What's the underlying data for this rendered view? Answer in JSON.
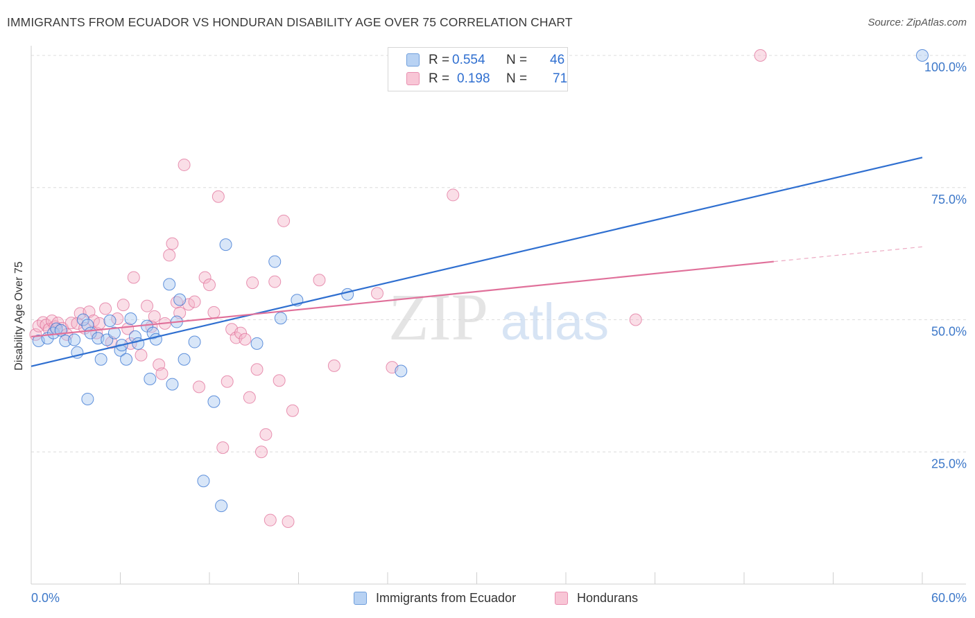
{
  "title": "IMMIGRANTS FROM ECUADOR VS HONDURAN DISABILITY AGE OVER 75 CORRELATION CHART",
  "source": "Source: ZipAtlas.com",
  "watermark": {
    "zip": "ZIP",
    "atlas": "atlas"
  },
  "legend": [
    {
      "r_label": "R =",
      "r_value": "0.554",
      "n_label": "N =",
      "n_value": "46"
    },
    {
      "r_label": "R =",
      "r_value": "0.198",
      "n_label": "N =",
      "n_value": "71"
    }
  ],
  "colors": {
    "blue": "#2f6fd0",
    "blue_fill": "#a9c8f0",
    "pink": "#e0709a",
    "pink_fill": "#f5b6ca",
    "axis_text": "#3d78c9"
  },
  "chart_data": {
    "type": "scatter",
    "xlabel": "",
    "ylabel": "Disability Age Over 75",
    "xlim": [
      0,
      60
    ],
    "ylim": [
      0,
      100
    ],
    "x_tick_labels": [
      "0.0%",
      "60.0%"
    ],
    "y_ticks": [
      25,
      50,
      75,
      100
    ],
    "y_tick_labels": [
      "25.0%",
      "50.0%",
      "75.0%",
      "100.0%"
    ],
    "grid": "horizontal dashed",
    "legend_position": "top-center",
    "series": [
      {
        "name": "Immigrants from Ecuador",
        "color": "#2f6fd0",
        "trend": {
          "x0": 0,
          "y0": 41.2,
          "x1": 60,
          "y1": 80.7
        },
        "points": [
          [
            0.5,
            46
          ],
          [
            1.1,
            46.5
          ],
          [
            1.5,
            47.5
          ],
          [
            1.7,
            48.3
          ],
          [
            2,
            48
          ],
          [
            2.3,
            46
          ],
          [
            2.9,
            46.2
          ],
          [
            3.1,
            43.8
          ],
          [
            3.5,
            50
          ],
          [
            3.8,
            49
          ],
          [
            3.8,
            35
          ],
          [
            4,
            47.5
          ],
          [
            4.5,
            46.5
          ],
          [
            4.7,
            42.5
          ],
          [
            5.1,
            46.2
          ],
          [
            5.3,
            49.8
          ],
          [
            5.6,
            47.5
          ],
          [
            6,
            44.2
          ],
          [
            6.1,
            45.2
          ],
          [
            6.4,
            42.5
          ],
          [
            6.7,
            50.2
          ],
          [
            7,
            46.8
          ],
          [
            7.2,
            45.5
          ],
          [
            7.8,
            48.8
          ],
          [
            8.0,
            38.8
          ],
          [
            8.2,
            47.5
          ],
          [
            8.4,
            46.3
          ],
          [
            9.3,
            56.7
          ],
          [
            9.5,
            37.8
          ],
          [
            9.8,
            49.6
          ],
          [
            10,
            53.8
          ],
          [
            10.3,
            42.5
          ],
          [
            11,
            45.8
          ],
          [
            11.6,
            19.5
          ],
          [
            12.3,
            34.5
          ],
          [
            12.8,
            14.8
          ],
          [
            13.1,
            64.2
          ],
          [
            15.2,
            45.5
          ],
          [
            16.4,
            61
          ],
          [
            16.8,
            50.3
          ],
          [
            17.9,
            53.7
          ],
          [
            21.3,
            54.8
          ],
          [
            24.9,
            40.3
          ],
          [
            60,
            100
          ]
        ]
      },
      {
        "name": "Hondurans",
        "color": "#e0709a",
        "trend": {
          "x0": 0,
          "y0": 46.8,
          "x1": 50,
          "y1": 61,
          "dash_to_x": 60,
          "dash_to_y": 63.8
        },
        "points": [
          [
            0.3,
            47.2
          ],
          [
            0.5,
            48.8
          ],
          [
            0.8,
            49.5
          ],
          [
            1,
            49
          ],
          [
            1.2,
            48.2
          ],
          [
            1.4,
            49.8
          ],
          [
            1.6,
            48.7
          ],
          [
            1.8,
            49.4
          ],
          [
            2.1,
            48.4
          ],
          [
            2.4,
            47.2
          ],
          [
            2.7,
            49.4
          ],
          [
            3.1,
            49.3
          ],
          [
            3.3,
            51.2
          ],
          [
            3.6,
            48.4
          ],
          [
            3.9,
            51.5
          ],
          [
            4.2,
            49.8
          ],
          [
            4.4,
            47.5
          ],
          [
            4.6,
            49.3
          ],
          [
            5.0,
            52.1
          ],
          [
            5.4,
            45.7
          ],
          [
            5.8,
            50.2
          ],
          [
            6.2,
            52.8
          ],
          [
            6.5,
            48.3
          ],
          [
            6.7,
            45.5
          ],
          [
            6.9,
            58
          ],
          [
            7.4,
            43.3
          ],
          [
            7.8,
            52.6
          ],
          [
            8.1,
            48.7
          ],
          [
            8.3,
            50.6
          ],
          [
            8.6,
            41.5
          ],
          [
            8.8,
            39.8
          ],
          [
            9.0,
            49.3
          ],
          [
            9.3,
            62.2
          ],
          [
            9.5,
            64.4
          ],
          [
            9.8,
            53.3
          ],
          [
            10,
            51.3
          ],
          [
            10.3,
            79.3
          ],
          [
            10.6,
            52.9
          ],
          [
            11,
            53.4
          ],
          [
            11.3,
            37.3
          ],
          [
            11.7,
            58
          ],
          [
            12,
            56.6
          ],
          [
            12.3,
            51.4
          ],
          [
            12.6,
            73.3
          ],
          [
            12.9,
            25.8
          ],
          [
            13.2,
            38.3
          ],
          [
            13.5,
            48.2
          ],
          [
            13.8,
            46.6
          ],
          [
            14.1,
            47.5
          ],
          [
            14.4,
            46.3
          ],
          [
            14.7,
            35.3
          ],
          [
            14.9,
            57
          ],
          [
            15.2,
            40.6
          ],
          [
            15.5,
            25
          ],
          [
            15.8,
            28.3
          ],
          [
            16.1,
            12.1
          ],
          [
            16.4,
            57.2
          ],
          [
            16.7,
            38.5
          ],
          [
            17,
            68.7
          ],
          [
            17.3,
            11.8
          ],
          [
            17.6,
            32.8
          ],
          [
            19.4,
            57.5
          ],
          [
            20.4,
            41.3
          ],
          [
            23.3,
            55
          ],
          [
            24.3,
            41
          ],
          [
            28.4,
            73.6
          ],
          [
            40.7,
            50
          ],
          [
            49.1,
            100
          ]
        ]
      }
    ]
  },
  "bottom_legend": [
    {
      "label": "Immigrants from Ecuador"
    },
    {
      "label": "Hondurans"
    }
  ]
}
